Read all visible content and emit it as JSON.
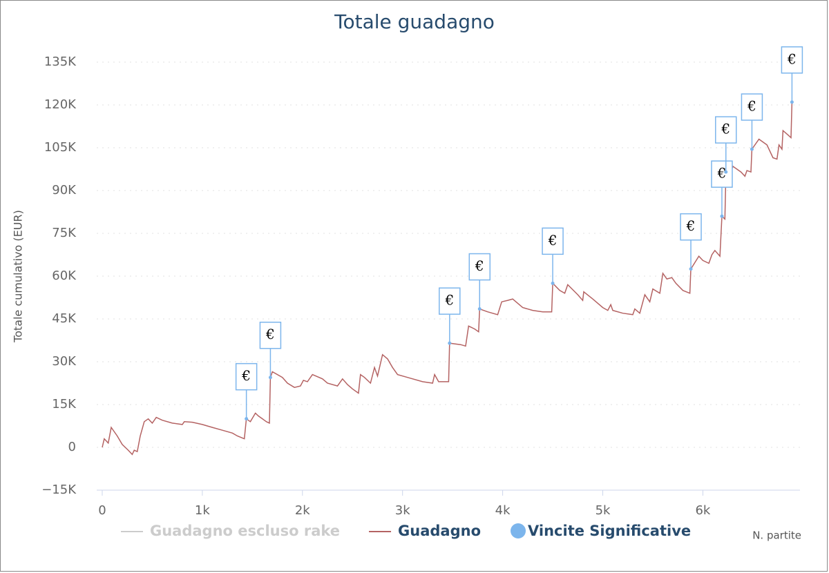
{
  "chart_data": {
    "type": "line",
    "title": "Totale guadagno",
    "y_label": "Totale cumulativo (EUR)",
    "x_label": "N. partite",
    "xlim": [
      -55,
      6970
    ],
    "ylim": [
      -15000,
      135000
    ],
    "xticks": [
      0,
      {
        "value": 1000,
        "label": "1k"
      },
      {
        "value": 2000,
        "label": "2k"
      },
      {
        "value": 3000,
        "label": "3k"
      },
      {
        "value": 4000,
        "label": "4k"
      },
      {
        "value": 5000,
        "label": "5k"
      },
      {
        "value": 6000,
        "label": "6k"
      }
    ],
    "yticks": [
      {
        "value": -15000,
        "label": "−15K"
      },
      0,
      {
        "value": 15000,
        "label": "15K"
      },
      {
        "value": 30000,
        "label": "30K"
      },
      {
        "value": 45000,
        "label": "45K"
      },
      {
        "value": 60000,
        "label": "60K"
      },
      {
        "value": 75000,
        "label": "75K"
      },
      {
        "value": 90000,
        "label": "90K"
      },
      {
        "value": 105000,
        "label": "105K"
      },
      {
        "value": 120000,
        "label": "120K"
      },
      {
        "value": 135000,
        "label": "135K"
      }
    ],
    "grid": true,
    "series": [
      {
        "name": "Guadagno escluso rake",
        "color": "#cccccc",
        "visible": false
      },
      {
        "name": "Guadagno",
        "color": "#b46262",
        "visible": true,
        "x": [
          0,
          20,
          60,
          90,
          150,
          200,
          260,
          300,
          320,
          350,
          380,
          420,
          460,
          500,
          540,
          600,
          700,
          800,
          820,
          900,
          1000,
          1050,
          1100,
          1200,
          1300,
          1350,
          1420,
          1440,
          1480,
          1530,
          1560,
          1640,
          1670,
          1680,
          1700,
          1800,
          1850,
          1920,
          1980,
          2010,
          2050,
          2100,
          2200,
          2250,
          2350,
          2400,
          2450,
          2500,
          2560,
          2580,
          2620,
          2680,
          2720,
          2750,
          2800,
          2850,
          2900,
          2950,
          3050,
          3200,
          3300,
          3320,
          3360,
          3420,
          3460,
          3470,
          3580,
          3630,
          3660,
          3720,
          3760,
          3770,
          3850,
          3950,
          3990,
          4050,
          4100,
          4200,
          4300,
          4400,
          4490,
          4500,
          4570,
          4620,
          4650,
          4750,
          4800,
          4810,
          4900,
          5000,
          5050,
          5080,
          5100,
          5200,
          5300,
          5320,
          5370,
          5420,
          5470,
          5500,
          5570,
          5600,
          5640,
          5690,
          5730,
          5800,
          5870,
          5880,
          5960,
          6000,
          6060,
          6090,
          6120,
          6170,
          6190,
          6220,
          6230,
          6260,
          6300,
          6380,
          6420,
          6440,
          6480,
          6490,
          6560,
          6640,
          6700,
          6740,
          6760,
          6790,
          6800,
          6850,
          6880,
          6890
        ],
        "values": [
          0,
          3000,
          1500,
          7000,
          4000,
          1000,
          -1000,
          -2500,
          -1000,
          -1500,
          4000,
          9000,
          10000,
          8500,
          10500,
          9500,
          8500,
          8000,
          9000,
          8800,
          8000,
          7500,
          7000,
          6000,
          5000,
          4000,
          3000,
          10000,
          9000,
          12000,
          11000,
          9000,
          8500,
          24500,
          26500,
          24500,
          22500,
          21000,
          21500,
          23500,
          23000,
          25500,
          24000,
          22500,
          21500,
          24000,
          22000,
          20500,
          19000,
          25500,
          24500,
          22500,
          28000,
          25000,
          32500,
          31000,
          28000,
          25500,
          24500,
          23000,
          22500,
          25500,
          23000,
          23000,
          23000,
          36500,
          36000,
          35500,
          42500,
          41500,
          40500,
          48500,
          47500,
          46500,
          51000,
          51500,
          52000,
          49000,
          48000,
          47500,
          47500,
          57500,
          55000,
          54000,
          57000,
          53500,
          51500,
          54500,
          52000,
          49000,
          48000,
          50000,
          48000,
          47000,
          46500,
          48500,
          47000,
          53500,
          51000,
          55500,
          54000,
          61000,
          59000,
          59500,
          57500,
          55000,
          54000,
          62500,
          67000,
          65500,
          64500,
          67500,
          69000,
          67000,
          81000,
          80000,
          96500,
          94500,
          98500,
          96500,
          95000,
          97000,
          96500,
          104500,
          108000,
          106000,
          101500,
          101000,
          106000,
          104500,
          111000,
          109500,
          108500,
          121000
        ]
      },
      {
        "name": "Vincite Significative",
        "color": "#7cb5ec",
        "visible": true,
        "type": "flags",
        "x": [
          1440,
          1680,
          3470,
          3770,
          4500,
          5880,
          6190,
          6230,
          6490,
          6890
        ],
        "values": [
          10000,
          24500,
          36500,
          48500,
          57500,
          62500,
          81000,
          96500,
          104500,
          121000
        ],
        "labels": [
          "€",
          "€",
          "€",
          "€",
          "€",
          "€",
          "€",
          "€",
          "€",
          "€"
        ]
      }
    ]
  }
}
